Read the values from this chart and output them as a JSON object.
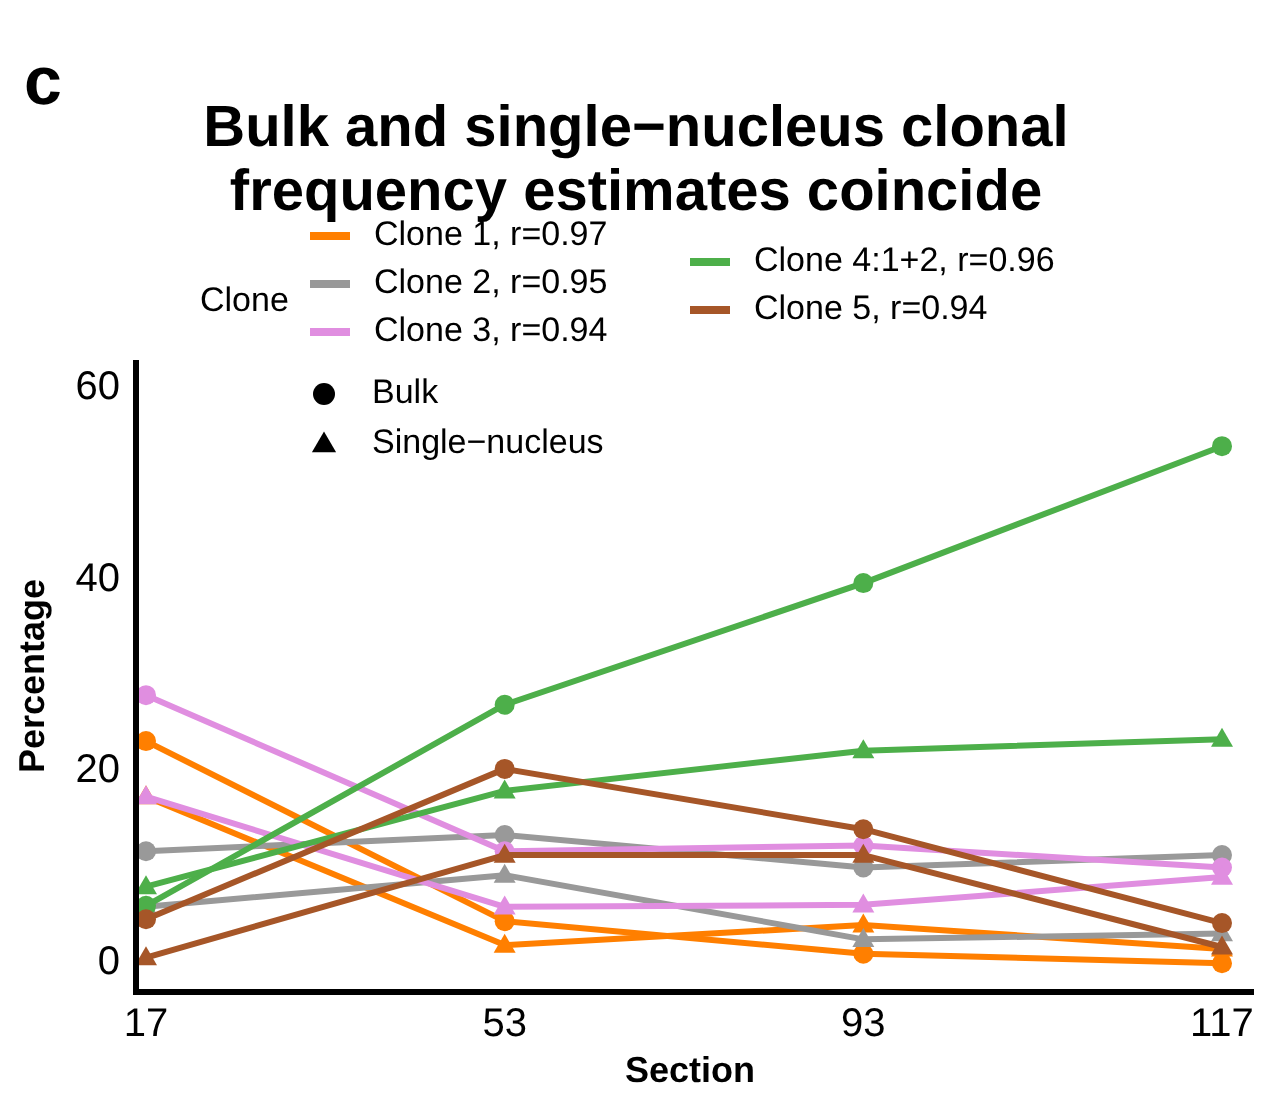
{
  "chart_data": {
    "type": "line",
    "title": "Bulk and single−nucleus clonal\nfrequency estimates coincide",
    "xlabel": "Section",
    "ylabel": "Percentage",
    "legend_title": "Clone",
    "legend": "top",
    "categories": [
      "17",
      "53",
      "93",
      "117"
    ],
    "ylim": [
      -3,
      63
    ],
    "yticks": [
      0,
      20,
      40,
      60
    ],
    "grid": false,
    "annotations": [
      "c",
      "Bulk",
      "Single−nucleus"
    ],
    "series": [
      {
        "name": "Clone 1, r=0.97",
        "color": "#ff7f00",
        "marker": "circle",
        "values": [
          23.2,
          4.4,
          1.0,
          0.0
        ]
      },
      {
        "color": "#ff7f00",
        "marker": "triangle",
        "values": [
          17.4,
          1.9,
          4.0,
          1.5
        ]
      },
      {
        "name": "Clone 2, r=0.95",
        "color": "#999999",
        "marker": "circle",
        "values": [
          11.7,
          13.4,
          10.0,
          11.3
        ]
      },
      {
        "color": "#999999",
        "marker": "triangle",
        "values": [
          5.9,
          9.2,
          2.5,
          3.1
        ]
      },
      {
        "name": "Clone 3, r=0.94",
        "color": "#e08ee0",
        "marker": "circle",
        "values": [
          28.0,
          11.7,
          12.3,
          10.0
        ]
      },
      {
        "color": "#e08ee0",
        "marker": "triangle",
        "values": [
          17.4,
          5.9,
          6.1,
          9.0
        ]
      },
      {
        "name": "Clone 4:1+2, r=0.96",
        "color": "#4daf4a",
        "marker": "circle",
        "values": [
          6.0,
          27.0,
          39.7,
          54.0
        ]
      },
      {
        "color": "#4daf4a",
        "marker": "triangle",
        "values": [
          8.0,
          18.0,
          22.2,
          23.4
        ]
      },
      {
        "name": "Clone 5, r=0.94",
        "color": "#a65628",
        "marker": "circle",
        "values": [
          4.6,
          20.3,
          14.0,
          4.2
        ]
      },
      {
        "color": "#a65628",
        "marker": "triangle",
        "values": [
          0.6,
          11.3,
          11.3,
          1.7
        ]
      }
    ]
  }
}
